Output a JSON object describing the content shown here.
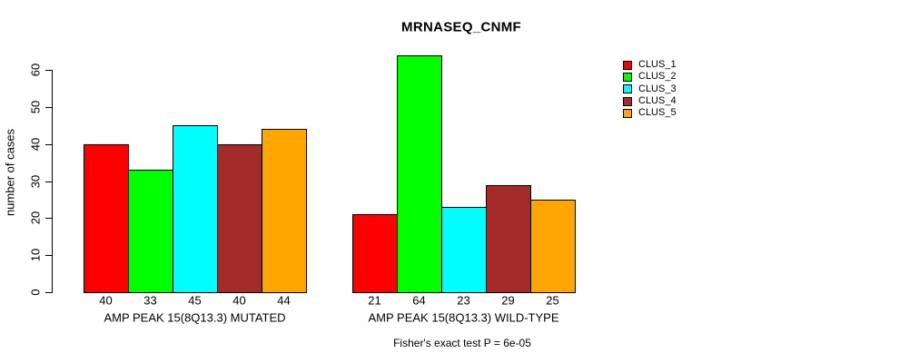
{
  "chart_data": {
    "type": "bar",
    "title": "MRNASEQ_CNMF",
    "ylabel": "number of cases",
    "xlabel": "",
    "ylim": [
      0,
      60
    ],
    "yticks": [
      0,
      10,
      20,
      30,
      40,
      50,
      60
    ],
    "grid": false,
    "legend_position": "top-right",
    "bar_border_color": "#000000",
    "legend": [
      {
        "label": "CLUS_1",
        "color": "#ff0000"
      },
      {
        "label": "CLUS_2",
        "color": "#00ff00"
      },
      {
        "label": "CLUS_3",
        "color": "#00ffff"
      },
      {
        "label": "CLUS_4",
        "color": "#a52a2a"
      },
      {
        "label": "CLUS_5",
        "color": "#ffa500"
      }
    ],
    "groups": [
      {
        "label": "AMP PEAK 15(8Q13.3) MUTATED",
        "values": [
          40,
          33,
          45,
          40,
          44
        ],
        "value_labels": [
          "40",
          "33",
          "45",
          "40",
          "44"
        ]
      },
      {
        "label": "AMP PEAK 15(8Q13.3) WILD-TYPE",
        "values": [
          21,
          64,
          23,
          29,
          25
        ],
        "value_labels": [
          "21",
          "64",
          "23",
          "29",
          "25"
        ]
      }
    ],
    "annotation": "Fisher's exact test P = 6e-05"
  }
}
